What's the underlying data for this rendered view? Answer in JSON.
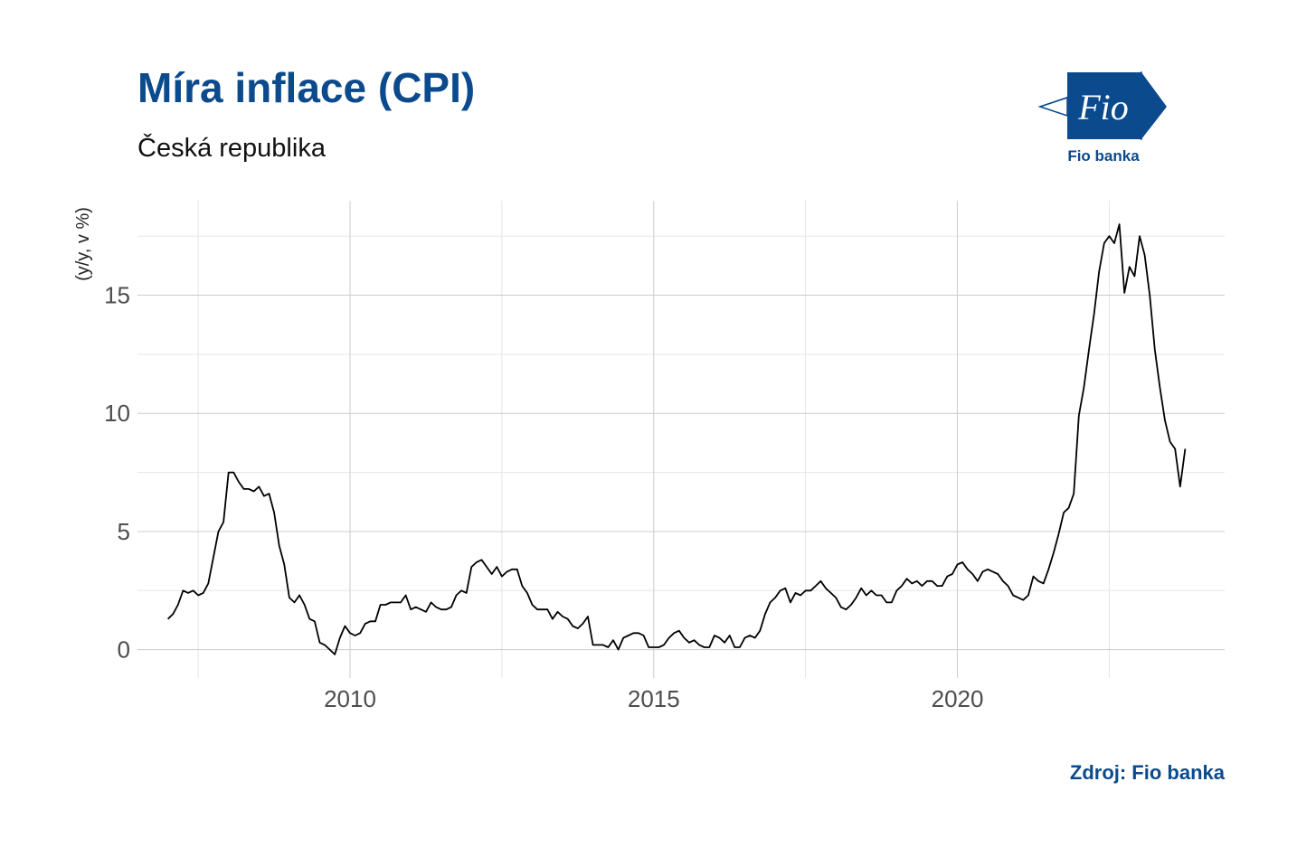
{
  "header": {
    "title": "Míra inflace (CPI)",
    "subtitle": "Česká republika"
  },
  "logo": {
    "wordmark": "Fio",
    "caption": "Fio banka",
    "color": "#0b4a8c"
  },
  "source": "Zdroj: Fio banka",
  "chart_data": {
    "type": "line",
    "title": "Míra inflace (CPI)",
    "subtitle": "Česká republika",
    "xlabel": "",
    "ylabel": "(y/y, v %)",
    "xlim": [
      2006.5,
      2024.4
    ],
    "ylim": [
      -1.2,
      19
    ],
    "x_ticks": [
      2010,
      2015,
      2020
    ],
    "y_ticks": [
      0,
      5,
      10,
      15
    ],
    "grid": true,
    "line_color": "#000000",
    "series": [
      {
        "x_start": 2007.0,
        "x_step": 0.08333333,
        "values": [
          1.3,
          1.5,
          1.9,
          2.5,
          2.4,
          2.5,
          2.3,
          2.4,
          2.8,
          3.9,
          5.0,
          5.4,
          7.5,
          7.5,
          7.1,
          6.8,
          6.8,
          6.7,
          6.9,
          6.5,
          6.6,
          5.8,
          4.4,
          3.6,
          2.2,
          2.0,
          2.3,
          1.9,
          1.3,
          1.2,
          0.3,
          0.2,
          0.0,
          -0.2,
          0.5,
          1.0,
          0.7,
          0.6,
          0.7,
          1.1,
          1.2,
          1.2,
          1.9,
          1.9,
          2.0,
          2.0,
          2.0,
          2.3,
          1.7,
          1.8,
          1.7,
          1.6,
          2.0,
          1.8,
          1.7,
          1.7,
          1.8,
          2.3,
          2.5,
          2.4,
          3.5,
          3.7,
          3.8,
          3.5,
          3.2,
          3.5,
          3.1,
          3.3,
          3.4,
          3.4,
          2.7,
          2.4,
          1.9,
          1.7,
          1.7,
          1.7,
          1.3,
          1.6,
          1.4,
          1.3,
          1.0,
          0.9,
          1.1,
          1.4,
          0.2,
          0.2,
          0.2,
          0.1,
          0.4,
          0.0,
          0.5,
          0.6,
          0.7,
          0.7,
          0.6,
          0.1,
          0.1,
          0.1,
          0.2,
          0.5,
          0.7,
          0.8,
          0.5,
          0.3,
          0.4,
          0.2,
          0.1,
          0.1,
          0.6,
          0.5,
          0.3,
          0.6,
          0.1,
          0.1,
          0.5,
          0.6,
          0.5,
          0.8,
          1.5,
          2.0,
          2.2,
          2.5,
          2.6,
          2.0,
          2.4,
          2.3,
          2.5,
          2.5,
          2.7,
          2.9,
          2.6,
          2.4,
          2.2,
          1.8,
          1.7,
          1.9,
          2.2,
          2.6,
          2.3,
          2.5,
          2.3,
          2.3,
          2.0,
          2.0,
          2.5,
          2.7,
          3.0,
          2.8,
          2.9,
          2.7,
          2.9,
          2.9,
          2.7,
          2.7,
          3.1,
          3.2,
          3.6,
          3.7,
          3.4,
          3.2,
          2.9,
          3.3,
          3.4,
          3.3,
          3.2,
          2.9,
          2.7,
          2.3,
          2.2,
          2.1,
          2.3,
          3.1,
          2.9,
          2.8,
          3.4,
          4.1,
          4.9,
          5.8,
          6.0,
          6.6,
          9.9,
          11.1,
          12.7,
          14.2,
          16.0,
          17.2,
          17.5,
          17.2,
          18.0,
          15.1,
          16.2,
          15.8,
          17.5,
          16.7,
          15.0,
          12.7,
          11.1,
          9.7,
          8.8,
          8.5,
          6.9,
          8.5
        ]
      }
    ]
  }
}
